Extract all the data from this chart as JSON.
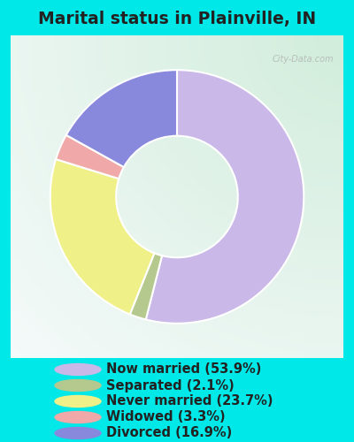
{
  "title": "Marital status in Plainville, IN",
  "slices": [
    {
      "label": "Now married (53.9%)",
      "value": 53.9,
      "color": "#c9b8e8"
    },
    {
      "label": "Separated (2.1%)",
      "value": 2.1,
      "color": "#b5c98e"
    },
    {
      "label": "Never married (23.7%)",
      "value": 23.7,
      "color": "#f0f088"
    },
    {
      "label": "Widowed (3.3%)",
      "value": 3.3,
      "color": "#f0a8a8"
    },
    {
      "label": "Divorced (16.9%)",
      "value": 16.9,
      "color": "#8888dd"
    }
  ],
  "bg_outer": "#00e8e8",
  "title_color": "#222222",
  "title_fontsize": 13.5,
  "legend_fontsize": 10.5,
  "watermark": "City-Data.com"
}
